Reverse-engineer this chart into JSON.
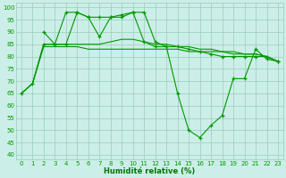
{
  "background_color": "#cceee8",
  "grid_color": "#99ccbb",
  "line_color": "#009900",
  "xlabel": "Humidité relative (%)",
  "xlabel_color": "#007700",
  "ylim": [
    38,
    102
  ],
  "xlim": [
    -0.5,
    23.5
  ],
  "yticks": [
    40,
    45,
    50,
    55,
    60,
    65,
    70,
    75,
    80,
    85,
    90,
    95,
    100
  ],
  "xticks": [
    0,
    1,
    2,
    3,
    4,
    5,
    6,
    7,
    8,
    9,
    10,
    11,
    12,
    13,
    14,
    15,
    16,
    17,
    18,
    19,
    20,
    21,
    22,
    23
  ],
  "tick_fontsize": 5.0,
  "xlabel_fontsize": 6.0,
  "series": [
    {
      "x": [
        0,
        1,
        2,
        3,
        4,
        5,
        6,
        7,
        8,
        9,
        10,
        11,
        12,
        13,
        14,
        15,
        16,
        17,
        18,
        19,
        20,
        21,
        22,
        23
      ],
      "y": [
        65,
        69,
        84,
        84,
        84,
        84,
        83,
        83,
        83,
        83,
        83,
        83,
        83,
        83,
        83,
        82,
        82,
        82,
        82,
        81,
        81,
        81,
        80,
        78
      ],
      "markers": false
    },
    {
      "x": [
        0,
        1,
        2,
        3,
        4,
        5,
        6,
        7,
        8,
        9,
        10,
        11,
        12,
        13,
        14,
        15,
        16,
        17,
        18,
        19,
        20,
        21,
        22,
        23
      ],
      "y": [
        65,
        69,
        85,
        85,
        85,
        85,
        85,
        85,
        86,
        87,
        87,
        86,
        85,
        85,
        84,
        84,
        83,
        83,
        82,
        82,
        81,
        81,
        80,
        78
      ],
      "markers": false
    },
    {
      "x": [
        2,
        3,
        4,
        5,
        6,
        7,
        8,
        9,
        10,
        11,
        12,
        13,
        14,
        15,
        16,
        17,
        18,
        19,
        20,
        21,
        22,
        23
      ],
      "y": [
        90,
        85,
        98,
        98,
        96,
        96,
        96,
        96,
        98,
        98,
        86,
        84,
        84,
        83,
        82,
        81,
        80,
        80,
        80,
        80,
        80,
        78
      ],
      "markers": true
    },
    {
      "x": [
        0,
        1,
        2,
        3,
        4,
        5,
        6,
        7,
        8,
        9,
        10,
        11,
        12,
        13,
        14,
        15,
        16,
        17,
        18,
        19,
        20,
        21,
        22,
        23
      ],
      "y": [
        65,
        69,
        85,
        85,
        85,
        98,
        96,
        88,
        96,
        97,
        98,
        86,
        84,
        84,
        65,
        50,
        47,
        52,
        56,
        71,
        71,
        83,
        79,
        78
      ],
      "markers": true
    }
  ]
}
